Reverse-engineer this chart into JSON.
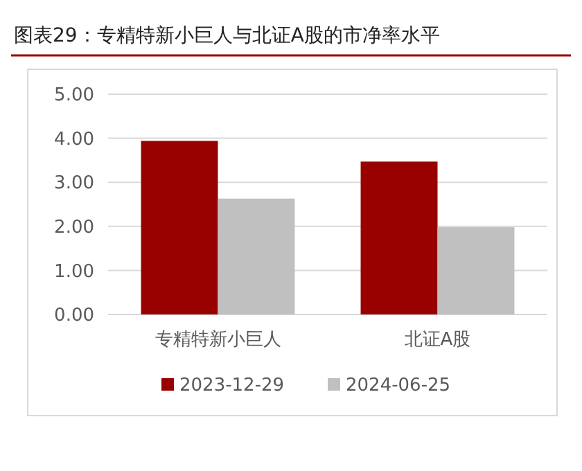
{
  "chart_data": {
    "type": "bar",
    "title": "图表29：专精特新小巨人与北证A股的市净率水平",
    "categories": [
      "专精特新小巨人",
      "北证A股"
    ],
    "series": [
      {
        "name": "2023-12-29",
        "color": "#990000",
        "values": [
          3.94,
          3.47
        ]
      },
      {
        "name": "2024-06-25",
        "color": "#c0c0c0",
        "values": [
          2.63,
          1.98
        ]
      }
    ],
    "ylim": [
      0,
      5
    ],
    "yticks": [
      {
        "value": 0,
        "label": "0.00"
      },
      {
        "value": 1,
        "label": "1.00"
      },
      {
        "value": 2,
        "label": "2.00"
      },
      {
        "value": 3,
        "label": "3.00"
      },
      {
        "value": 4,
        "label": "4.00"
      },
      {
        "value": 5,
        "label": "5.00"
      }
    ],
    "grid": "y",
    "legend": "bottom"
  }
}
